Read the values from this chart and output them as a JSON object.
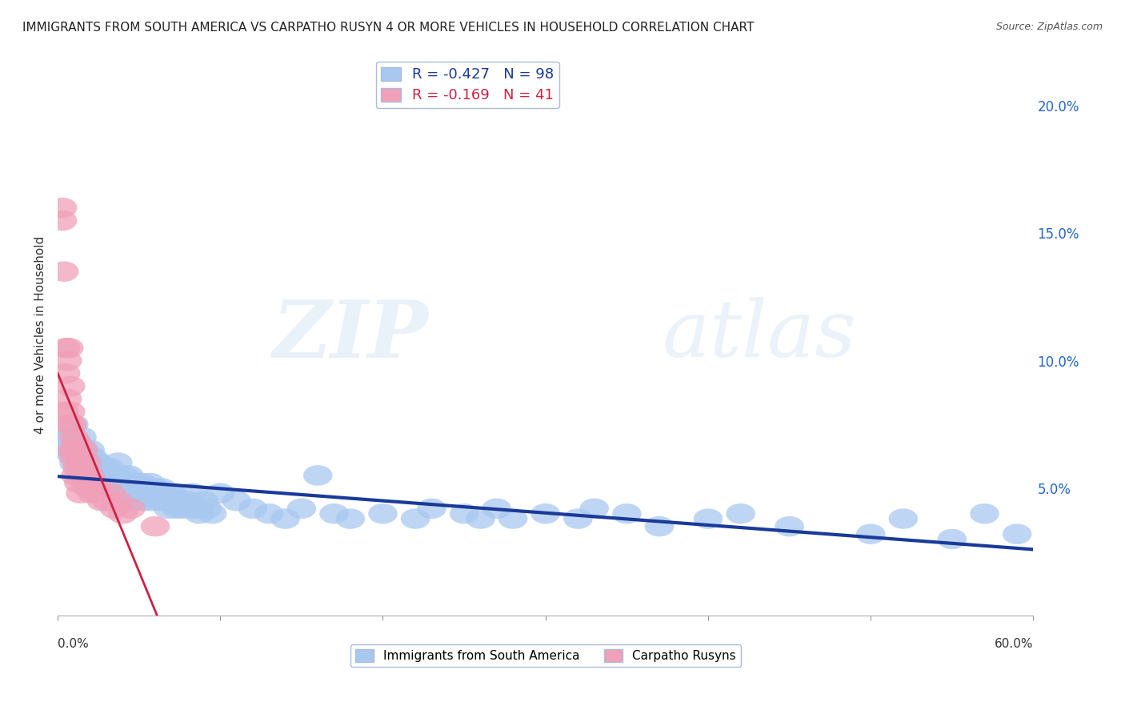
{
  "title": "IMMIGRANTS FROM SOUTH AMERICA VS CARPATHO RUSYN 4 OR MORE VEHICLES IN HOUSEHOLD CORRELATION CHART",
  "source": "Source: ZipAtlas.com",
  "ylabel": "4 or more Vehicles in Household",
  "right_yticks": [
    0.0,
    0.05,
    0.1,
    0.15,
    0.2
  ],
  "series1": {
    "label": "Immigrants from South America",
    "R": -0.427,
    "N": 98,
    "color": "#A8C8F0",
    "line_color": "#1A3A9A",
    "x": [
      0.005,
      0.005,
      0.007,
      0.008,
      0.009,
      0.01,
      0.01,
      0.012,
      0.013,
      0.015,
      0.016,
      0.017,
      0.018,
      0.019,
      0.02,
      0.02,
      0.022,
      0.023,
      0.024,
      0.025,
      0.026,
      0.027,
      0.028,
      0.03,
      0.031,
      0.032,
      0.033,
      0.035,
      0.036,
      0.037,
      0.038,
      0.04,
      0.041,
      0.042,
      0.043,
      0.044,
      0.045,
      0.046,
      0.047,
      0.048,
      0.05,
      0.051,
      0.052,
      0.053,
      0.055,
      0.056,
      0.057,
      0.058,
      0.06,
      0.062,
      0.063,
      0.064,
      0.065,
      0.066,
      0.067,
      0.068,
      0.07,
      0.072,
      0.073,
      0.075,
      0.077,
      0.08,
      0.082,
      0.083,
      0.085,
      0.087,
      0.09,
      0.092,
      0.095,
      0.1,
      0.11,
      0.12,
      0.13,
      0.14,
      0.15,
      0.16,
      0.17,
      0.18,
      0.2,
      0.22,
      0.23,
      0.25,
      0.26,
      0.27,
      0.28,
      0.3,
      0.32,
      0.33,
      0.35,
      0.37,
      0.4,
      0.42,
      0.45,
      0.5,
      0.52,
      0.55,
      0.57,
      0.59
    ],
    "y": [
      0.072,
      0.065,
      0.07,
      0.065,
      0.063,
      0.075,
      0.06,
      0.068,
      0.058,
      0.07,
      0.065,
      0.06,
      0.062,
      0.058,
      0.065,
      0.055,
      0.062,
      0.058,
      0.055,
      0.06,
      0.055,
      0.052,
      0.058,
      0.055,
      0.052,
      0.058,
      0.05,
      0.055,
      0.052,
      0.06,
      0.048,
      0.05,
      0.055,
      0.052,
      0.048,
      0.055,
      0.05,
      0.048,
      0.052,
      0.045,
      0.05,
      0.048,
      0.052,
      0.045,
      0.05,
      0.048,
      0.052,
      0.045,
      0.05,
      0.048,
      0.045,
      0.05,
      0.048,
      0.045,
      0.048,
      0.042,
      0.048,
      0.045,
      0.042,
      0.045,
      0.042,
      0.045,
      0.042,
      0.048,
      0.042,
      0.04,
      0.045,
      0.042,
      0.04,
      0.048,
      0.045,
      0.042,
      0.04,
      0.038,
      0.042,
      0.055,
      0.04,
      0.038,
      0.04,
      0.038,
      0.042,
      0.04,
      0.038,
      0.042,
      0.038,
      0.04,
      0.038,
      0.042,
      0.04,
      0.035,
      0.038,
      0.04,
      0.035,
      0.032,
      0.038,
      0.03,
      0.04,
      0.032
    ]
  },
  "series2": {
    "label": "Carpatho Rusyns",
    "R": -0.169,
    "N": 41,
    "color": "#F0A0B8",
    "line_color": "#CC2244",
    "x": [
      0.003,
      0.003,
      0.004,
      0.004,
      0.005,
      0.005,
      0.006,
      0.006,
      0.007,
      0.007,
      0.008,
      0.008,
      0.009,
      0.009,
      0.01,
      0.01,
      0.011,
      0.011,
      0.012,
      0.012,
      0.013,
      0.013,
      0.014,
      0.014,
      0.015,
      0.016,
      0.017,
      0.018,
      0.019,
      0.02,
      0.021,
      0.022,
      0.025,
      0.027,
      0.03,
      0.033,
      0.035,
      0.037,
      0.04,
      0.045,
      0.06
    ],
    "y": [
      0.155,
      0.16,
      0.135,
      0.08,
      0.105,
      0.095,
      0.1,
      0.085,
      0.105,
      0.075,
      0.09,
      0.08,
      0.075,
      0.065,
      0.07,
      0.062,
      0.065,
      0.055,
      0.068,
      0.058,
      0.063,
      0.052,
      0.058,
      0.048,
      0.055,
      0.065,
      0.055,
      0.06,
      0.05,
      0.055,
      0.048,
      0.052,
      0.05,
      0.045,
      0.045,
      0.048,
      0.042,
      0.045,
      0.04,
      0.042,
      0.035
    ]
  },
  "xlim": [
    0,
    0.6
  ],
  "ylim": [
    0,
    0.22
  ],
  "watermark_zip": "ZIP",
  "watermark_atlas": "atlas",
  "background_color": "#FFFFFF",
  "grid_color": "#CCCCCC"
}
